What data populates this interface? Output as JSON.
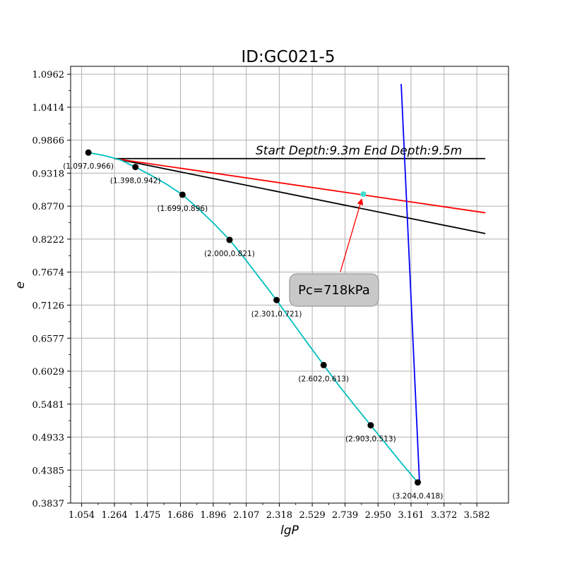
{
  "chart_data": {
    "type": "line",
    "title": "ID:GC021-5",
    "xlabel": "lgP",
    "ylabel": "e",
    "xlim": [
      0.9835,
      3.7845
    ],
    "ylim": [
      0.3837,
      1.1093
    ],
    "x_ticks": [
      "1.054",
      "1.264",
      "1.475",
      "1.686",
      "1.896",
      "2.107",
      "2.318",
      "2.529",
      "2.739",
      "2.950",
      "3.161",
      "3.372",
      "3.582"
    ],
    "y_ticks": [
      "1.0962",
      "1.0414",
      "0.9866",
      "0.9318",
      "0.8770",
      "0.8222",
      "0.7674",
      "0.7126",
      "0.6577",
      "0.6029",
      "0.5481",
      "0.4933",
      "0.4385",
      "0.3837"
    ],
    "grid": true,
    "annotation": "Start Depth:9.3m End Depth:9.5m",
    "callout": "Pc=718kPa",
    "points": [
      {
        "x": 1.097,
        "y": 0.966,
        "label": "(1.097,0.966)"
      },
      {
        "x": 1.398,
        "y": 0.942,
        "label": "(1.398,0.942)"
      },
      {
        "x": 1.699,
        "y": 0.896,
        "label": "(1.699,0.896)"
      },
      {
        "x": 2.0,
        "y": 0.821,
        "label": "(2.000,0.821)"
      },
      {
        "x": 2.301,
        "y": 0.721,
        "label": "(2.301,0.721)"
      },
      {
        "x": 2.602,
        "y": 0.613,
        "label": "(2.602,0.613)"
      },
      {
        "x": 2.903,
        "y": 0.513,
        "label": "(2.903,0.513)"
      },
      {
        "x": 3.204,
        "y": 0.418,
        "label": "(3.204,0.418)"
      }
    ],
    "smooth_curve": [
      [
        1.097,
        0.966
      ],
      [
        1.2,
        0.961
      ],
      [
        1.3,
        0.954
      ],
      [
        1.398,
        0.942
      ],
      [
        1.5,
        0.928
      ],
      [
        1.6,
        0.913
      ],
      [
        1.699,
        0.896
      ],
      [
        1.8,
        0.873
      ],
      [
        1.9,
        0.848
      ],
      [
        2.0,
        0.821
      ],
      [
        2.1,
        0.789
      ],
      [
        2.2,
        0.755
      ],
      [
        2.301,
        0.721
      ],
      [
        2.4,
        0.685
      ],
      [
        2.5,
        0.649
      ],
      [
        2.602,
        0.613
      ],
      [
        2.7,
        0.579
      ],
      [
        2.8,
        0.546
      ],
      [
        2.903,
        0.513
      ],
      [
        3.0,
        0.482
      ],
      [
        3.1,
        0.45
      ],
      [
        3.204,
        0.418
      ]
    ],
    "pc_point": {
      "x": 2.856,
      "y": 0.897
    },
    "lines": [
      {
        "name": "horizontal",
        "color": "#000000",
        "from": [
          1.264,
          0.956
        ],
        "to": [
          3.636,
          0.956
        ]
      },
      {
        "name": "tangent",
        "color": "#000000",
        "from": [
          1.264,
          0.956
        ],
        "to": [
          3.636,
          0.8315
        ]
      },
      {
        "name": "bisector",
        "color": "#ff0000",
        "from": [
          1.264,
          0.956
        ],
        "to": [
          3.636,
          0.866
        ]
      },
      {
        "name": "compression-line",
        "color": "#0000ff",
        "from": [
          3.098,
          1.0801
        ],
        "to": [
          3.2155,
          0.4165
        ]
      }
    ],
    "colors": {
      "curve": "#00bfbf",
      "points": "#000000",
      "pc_marker": "#40e0d0",
      "arrow": "#ff0000"
    }
  }
}
